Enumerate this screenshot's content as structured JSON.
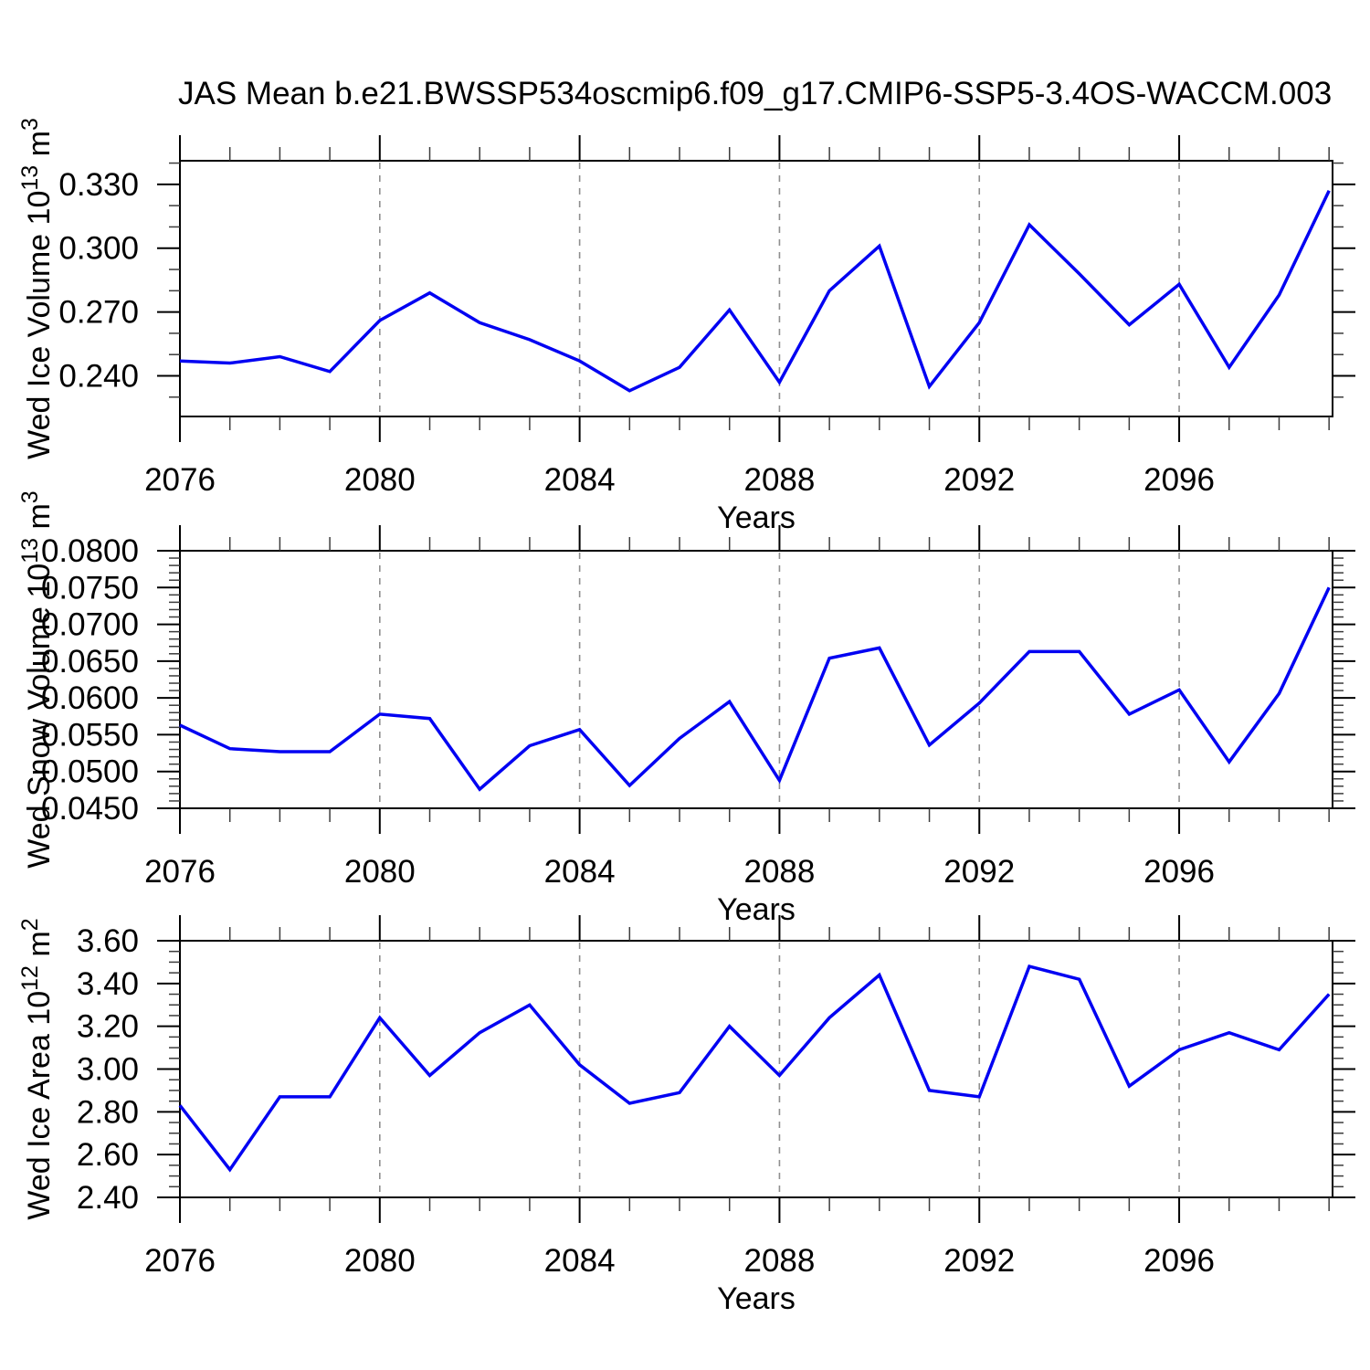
{
  "title": "JAS Mean b.e21.BWSSP534oscmip6.f09_g17.CMIP6-SSP5-3.4OS-WACCM.003",
  "figure": {
    "background": "#ffffff",
    "line_color": "#0202f2",
    "grid_color": "#8f8f8f",
    "frame_color": "#000000"
  },
  "x_axis": {
    "label": "Years",
    "range": [
      2076,
      2099.07
    ],
    "minor_step": 1,
    "major_ticks": [
      {
        "v": 2076,
        "label": "2076"
      },
      {
        "v": 2080,
        "label": "2080"
      },
      {
        "v": 2084,
        "label": "2084"
      },
      {
        "v": 2088,
        "label": "2088"
      },
      {
        "v": 2092,
        "label": "2092"
      },
      {
        "v": 2096,
        "label": "2096"
      }
    ],
    "gridlines": [
      2080,
      2084,
      2088,
      2092,
      2096
    ]
  },
  "chart_data": [
    {
      "type": "line",
      "name": "wed-ice-volume",
      "ylabel_segments": [
        {
          "text": "Wed Ice Volume 10"
        },
        {
          "text": "13",
          "sup": true
        },
        {
          "text": " m"
        },
        {
          "text": "3",
          "sup": true
        }
      ],
      "xlabel": "Years",
      "ylim": [
        0.2209,
        0.3411
      ],
      "y_minor_step": 0.01,
      "y_major_ticks": [
        {
          "v": 0.24,
          "label": "0.240"
        },
        {
          "v": 0.27,
          "label": "0.270"
        },
        {
          "v": 0.3,
          "label": "0.300"
        },
        {
          "v": 0.33,
          "label": "0.330"
        }
      ],
      "x": [
        2076,
        2077,
        2078,
        2079,
        2080,
        2081,
        2082,
        2083,
        2084,
        2085,
        2086,
        2087,
        2088,
        2089,
        2090,
        2091,
        2092,
        2093,
        2094,
        2095,
        2096,
        2097,
        2098,
        2099
      ],
      "values": [
        0.247,
        0.246,
        0.249,
        0.242,
        0.266,
        0.279,
        0.265,
        0.257,
        0.247,
        0.233,
        0.244,
        0.271,
        0.237,
        0.28,
        0.301,
        0.235,
        0.265,
        0.311,
        0.288,
        0.264,
        0.283,
        0.244,
        0.278,
        0.327
      ]
    },
    {
      "type": "line",
      "name": "wed-snow-volume",
      "ylabel_segments": [
        {
          "text": "Wed Snow Volume 10"
        },
        {
          "text": "13",
          "sup": true
        },
        {
          "text": " m"
        },
        {
          "text": "3",
          "sup": true
        }
      ],
      "xlabel": "Years",
      "ylim": [
        0.045,
        0.08
      ],
      "y_minor_step": 0.001,
      "y_major_ticks": [
        {
          "v": 0.045,
          "label": "0.0450"
        },
        {
          "v": 0.05,
          "label": "0.0500"
        },
        {
          "v": 0.055,
          "label": "0.0550"
        },
        {
          "v": 0.06,
          "label": "0.0600"
        },
        {
          "v": 0.065,
          "label": "0.0650"
        },
        {
          "v": 0.07,
          "label": "0.0700"
        },
        {
          "v": 0.075,
          "label": "0.0750"
        },
        {
          "v": 0.08,
          "label": "0.0800"
        }
      ],
      "x": [
        2076,
        2077,
        2078,
        2079,
        2080,
        2081,
        2082,
        2083,
        2084,
        2085,
        2086,
        2087,
        2088,
        2089,
        2090,
        2091,
        2092,
        2093,
        2094,
        2095,
        2096,
        2097,
        2098,
        2099
      ],
      "values": [
        0.0563,
        0.0531,
        0.0527,
        0.0527,
        0.0578,
        0.0572,
        0.0476,
        0.0535,
        0.0557,
        0.0481,
        0.0545,
        0.0595,
        0.0488,
        0.0654,
        0.0668,
        0.0536,
        0.0593,
        0.0663,
        0.0663,
        0.0578,
        0.0611,
        0.0513,
        0.0606,
        0.075
      ]
    },
    {
      "type": "line",
      "name": "wed-ice-area",
      "ylabel_segments": [
        {
          "text": "Wed Ice Area 10"
        },
        {
          "text": "12",
          "sup": true
        },
        {
          "text": " m"
        },
        {
          "text": "2",
          "sup": true
        }
      ],
      "xlabel": "Years",
      "ylim": [
        2.4,
        3.6
      ],
      "y_minor_step": 0.05,
      "y_major_ticks": [
        {
          "v": 2.4,
          "label": "2.40"
        },
        {
          "v": 2.6,
          "label": "2.60"
        },
        {
          "v": 2.8,
          "label": "2.80"
        },
        {
          "v": 3.0,
          "label": "3.00"
        },
        {
          "v": 3.2,
          "label": "3.20"
        },
        {
          "v": 3.4,
          "label": "3.40"
        },
        {
          "v": 3.6,
          "label": "3.60"
        }
      ],
      "x": [
        2076,
        2077,
        2078,
        2079,
        2080,
        2081,
        2082,
        2083,
        2084,
        2085,
        2086,
        2087,
        2088,
        2089,
        2090,
        2091,
        2092,
        2093,
        2094,
        2095,
        2096,
        2097,
        2098,
        2099
      ],
      "values": [
        2.83,
        2.53,
        2.87,
        2.87,
        3.24,
        2.97,
        3.17,
        3.3,
        3.02,
        2.84,
        2.89,
        3.2,
        2.97,
        3.24,
        3.44,
        2.9,
        2.87,
        3.48,
        3.42,
        2.92,
        3.09,
        3.17,
        3.09,
        3.35
      ]
    }
  ]
}
